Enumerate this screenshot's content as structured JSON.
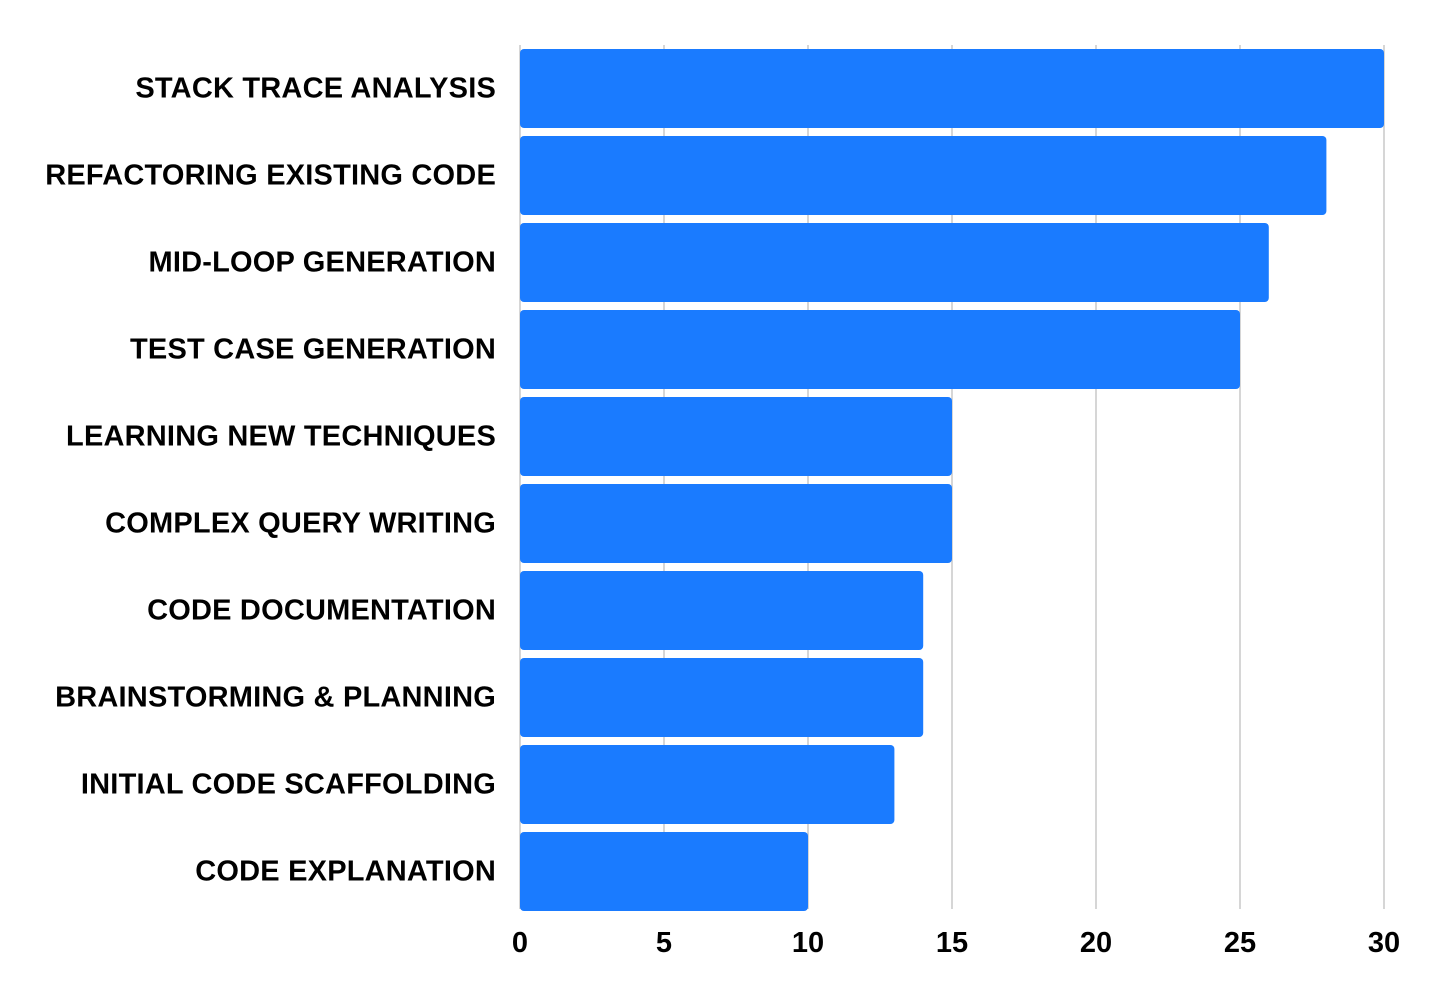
{
  "chart_data": {
    "type": "bar",
    "orientation": "horizontal",
    "categories": [
      "STACK TRACE ANALYSIS",
      "REFACTORING EXISTING CODE",
      "MID-LOOP GENERATION",
      "TEST CASE GENERATION",
      "LEARNING NEW TECHNIQUES",
      "COMPLEX QUERY WRITING",
      "CODE DOCUMENTATION",
      "BRAINSTORMING & PLANNING",
      "INITIAL CODE SCAFFOLDING",
      "CODE EXPLANATION"
    ],
    "values": [
      30,
      28,
      26,
      25,
      15,
      15,
      14,
      14,
      13,
      10
    ],
    "xlim": [
      0,
      30
    ],
    "xticks": [
      "0",
      "5",
      "10",
      "15",
      "20",
      "25",
      "30"
    ],
    "title": "",
    "xlabel": "",
    "ylabel": "",
    "grid": "vertical",
    "legend": "none",
    "bar_color": "#1a7bff",
    "grid_color": "#c8c8c8"
  }
}
